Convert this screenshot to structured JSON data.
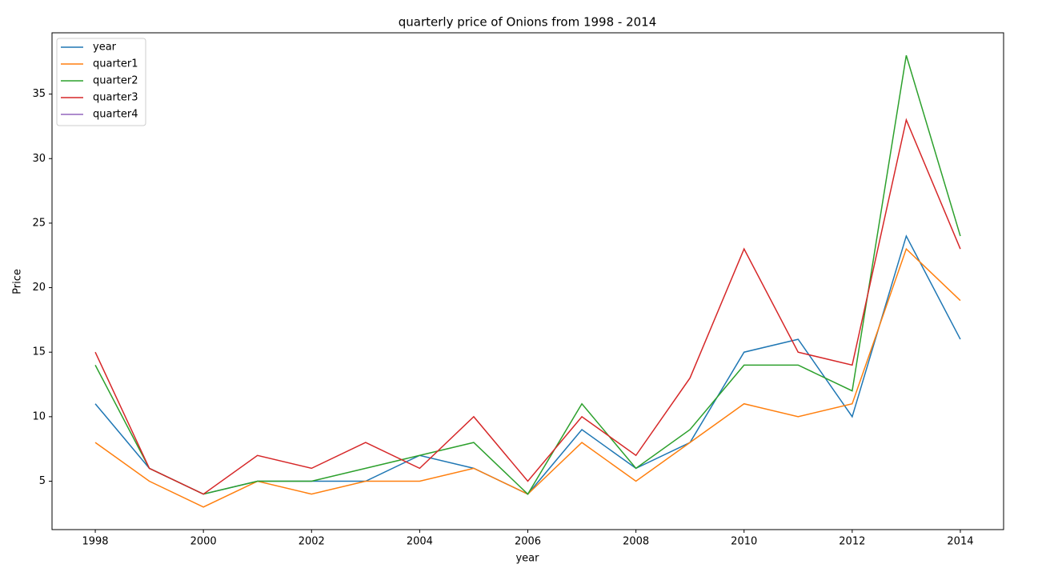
{
  "chart_data": {
    "type": "line",
    "title": "quarterly price of Onions from 1998 - 2014",
    "x_label": "year",
    "y_label": "Price",
    "x": [
      1998,
      1999,
      2000,
      2001,
      2002,
      2003,
      2004,
      2005,
      2006,
      2007,
      2008,
      2009,
      2010,
      2011,
      2012,
      2013,
      2014
    ],
    "series": [
      {
        "name": "year",
        "color": "#1f77b4",
        "values": [
          11,
          6,
          4,
          5,
          5,
          5,
          7,
          6,
          4,
          9,
          6,
          8,
          15,
          16,
          10,
          24,
          16
        ]
      },
      {
        "name": "quarter1",
        "color": "#ff7f0e",
        "values": [
          8,
          5,
          3,
          5,
          4,
          5,
          5,
          6,
          4,
          8,
          5,
          8,
          11,
          10,
          11,
          23,
          19
        ]
      },
      {
        "name": "quarter2",
        "color": "#2ca02c",
        "values": [
          14,
          6,
          4,
          5,
          5,
          6,
          7,
          8,
          4,
          11,
          6,
          9,
          14,
          14,
          12,
          38,
          24
        ]
      },
      {
        "name": "quarter3",
        "color": "#d62728",
        "values": [
          15,
          6,
          4,
          7,
          6,
          8,
          6,
          10,
          5,
          10,
          7,
          13,
          23,
          15,
          14,
          33,
          23
        ]
      },
      {
        "name": "quarter4",
        "color": "#9467bd",
        "values": [
          null,
          null,
          null,
          null,
          null,
          null,
          null,
          null,
          null,
          null,
          null,
          null,
          null,
          null,
          null,
          null,
          null
        ]
      }
    ],
    "xlim": [
      1997.2,
      2014.8
    ],
    "ylim": [
      1.25,
      39.75
    ],
    "xticks": [
      1998,
      2000,
      2002,
      2004,
      2006,
      2008,
      2010,
      2012,
      2014
    ],
    "yticks": [
      5,
      10,
      15,
      20,
      25,
      30,
      35
    ],
    "grid": false,
    "legend": "upper left"
  }
}
